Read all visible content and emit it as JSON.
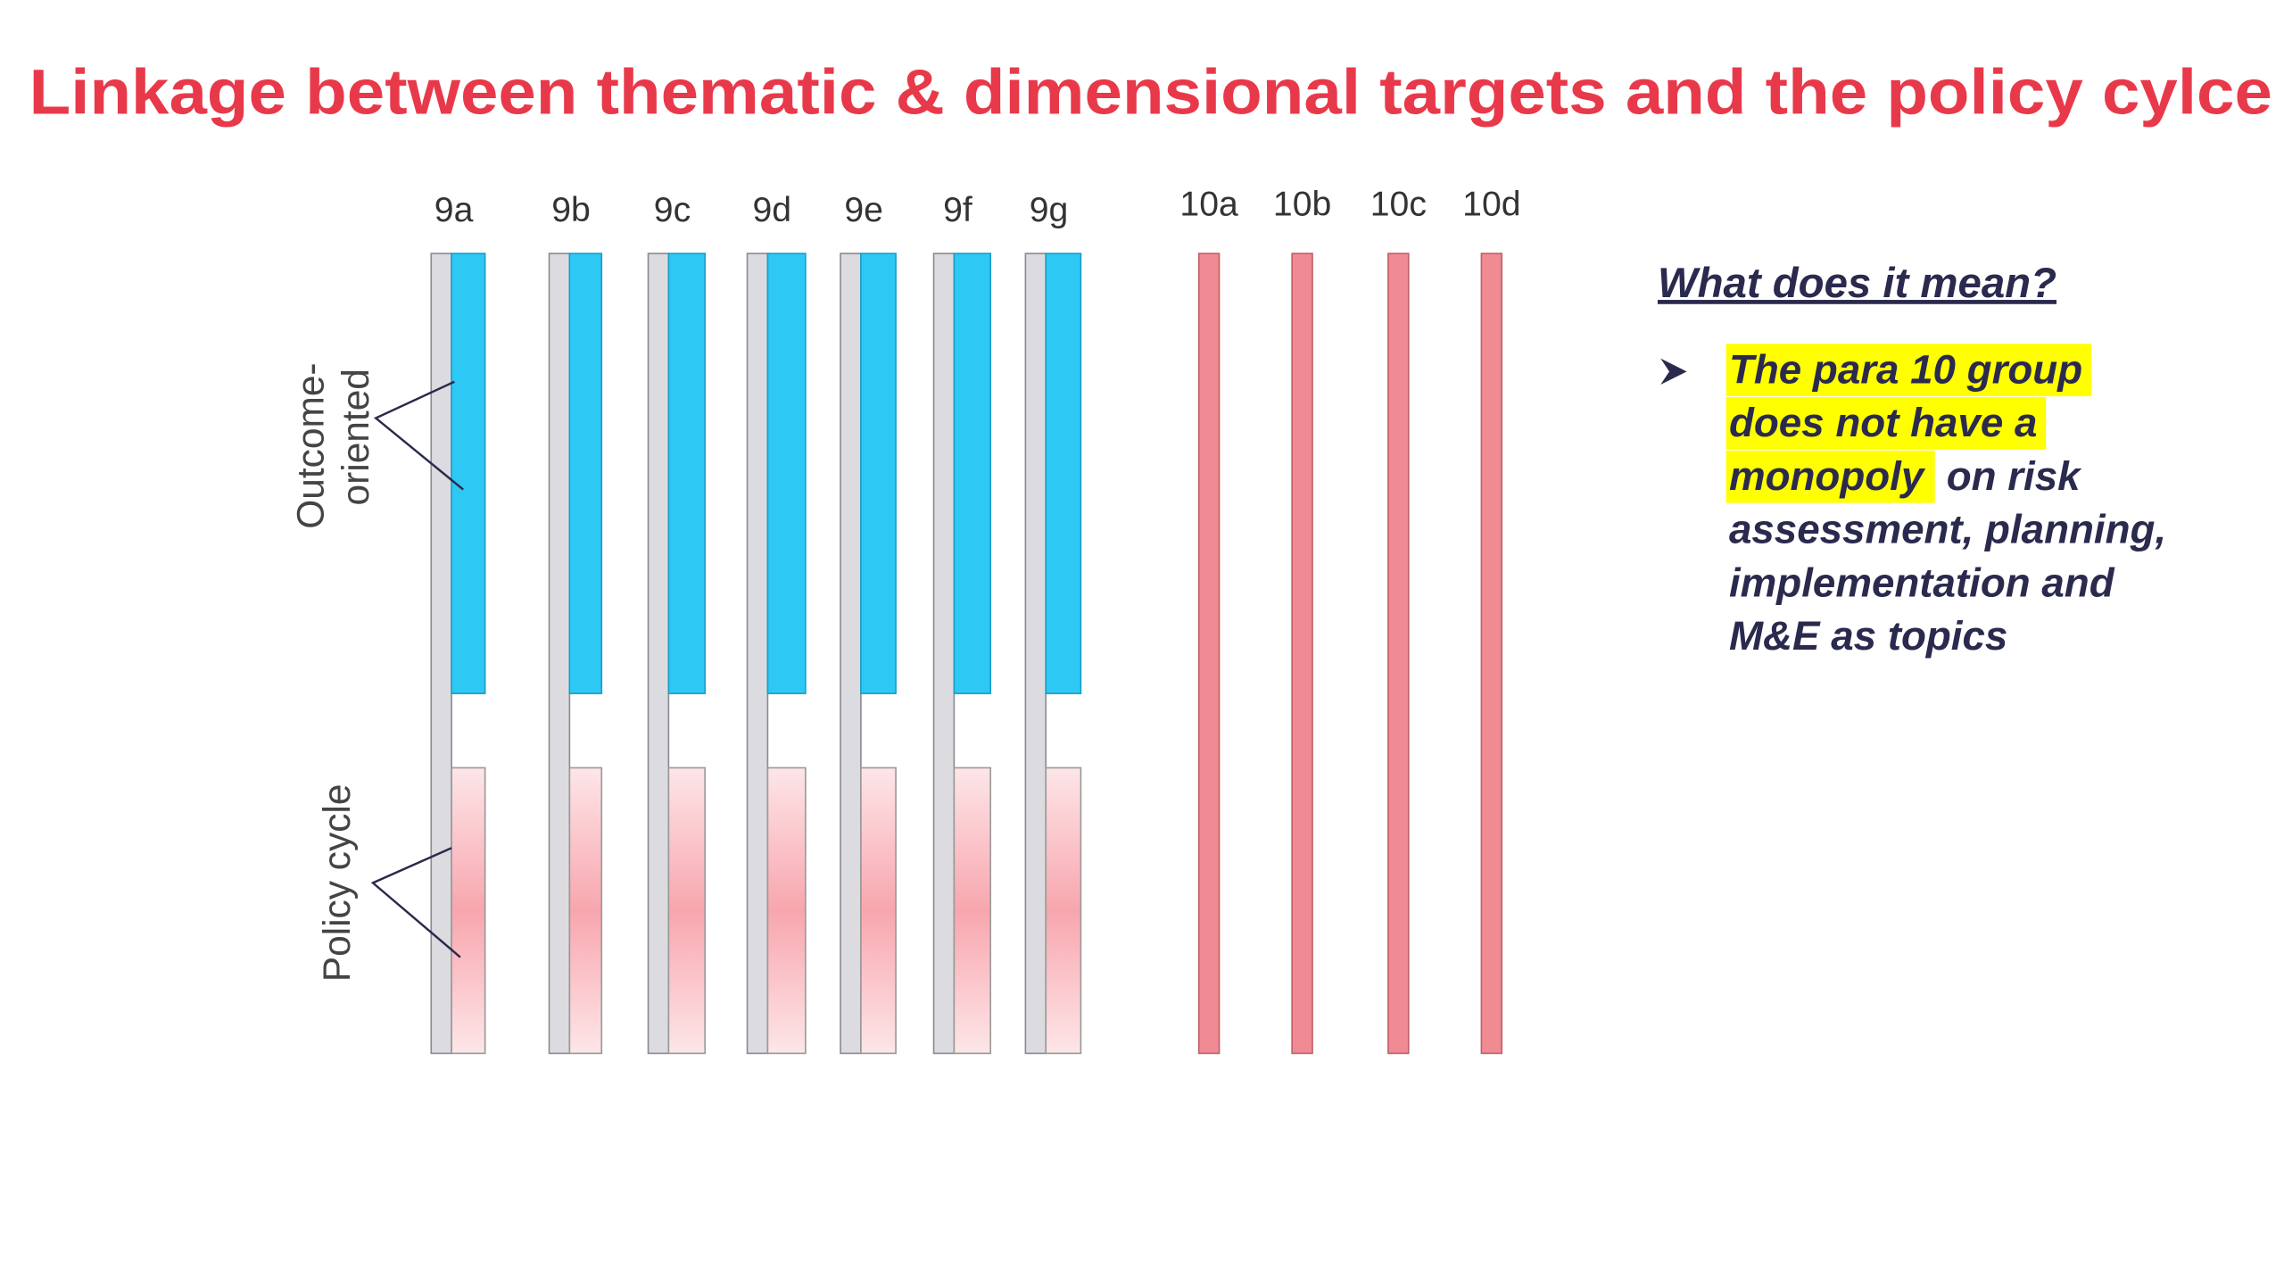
{
  "title": "Linkage between thematic & dimensional targets and the policy cylce",
  "para9_columns": [
    "9a",
    "9b",
    "9c",
    "9d",
    "9e",
    "9f",
    "9g"
  ],
  "para10_columns": [
    "10a",
    "10b",
    "10c",
    "10d"
  ],
  "side_labels": {
    "outcome_oriented": [
      "Outcome-",
      "oriented"
    ],
    "policy_cycle": "Policy cycle"
  },
  "explanation": {
    "heading": "What does it mean?",
    "highlighted_lines": [
      "The para 10 group",
      "does not have a",
      "monopoly"
    ],
    "lines": [
      "on risk",
      "assessment, planning,",
      "implementation and",
      "M&E as topics"
    ]
  }
}
